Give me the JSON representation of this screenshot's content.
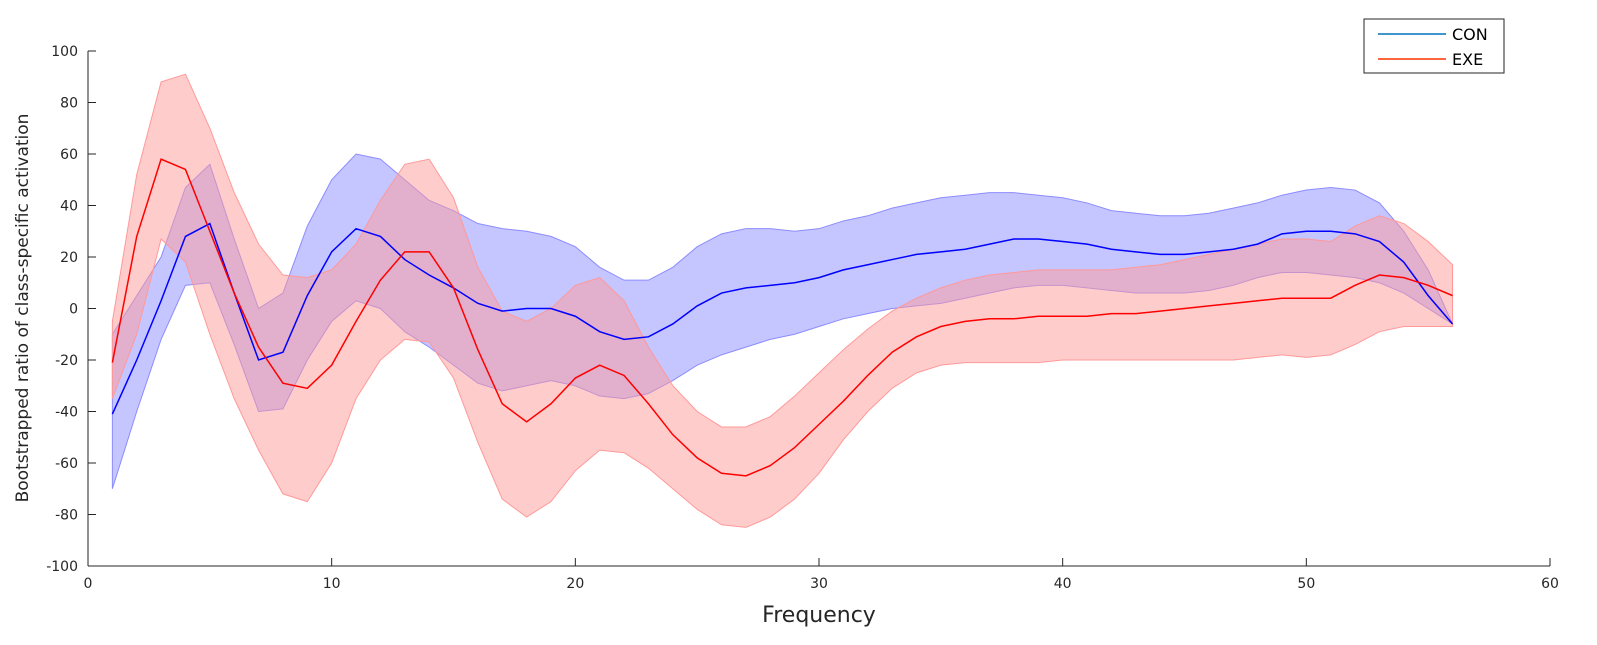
{
  "chart_data": {
    "type": "line",
    "title": "",
    "xlabel": "Frequency",
    "ylabel": "Bootstrapped ratio of class-specific activation",
    "xlim": [
      0,
      60
    ],
    "ylim": [
      -100,
      100
    ],
    "xticks": [
      "0",
      "10",
      "20",
      "30",
      "40",
      "50",
      "60"
    ],
    "yticks": [
      "-100",
      "-80",
      "-60",
      "-40",
      "-20",
      "0",
      "20",
      "40",
      "60",
      "80",
      "100"
    ],
    "grid": false,
    "legend_position": "top-right",
    "x": [
      1,
      2,
      3,
      4,
      5,
      6,
      7,
      8,
      9,
      10,
      11,
      12,
      13,
      14,
      15,
      16,
      17,
      18,
      19,
      20,
      21,
      22,
      23,
      24,
      25,
      26,
      27,
      28,
      29,
      30,
      31,
      32,
      33,
      34,
      35,
      36,
      37,
      38,
      39,
      40,
      41,
      42,
      43,
      44,
      45,
      46,
      47,
      48,
      49,
      50,
      51,
      52,
      53,
      54,
      55,
      56
    ],
    "series": [
      {
        "name": "CON",
        "color": "#0000ff",
        "band_color": "#8c8cff",
        "values": [
          -41,
          -20,
          3,
          28,
          33,
          6,
          -20,
          -17,
          5,
          22,
          31,
          28,
          19,
          13,
          8,
          2,
          -1,
          0,
          0,
          -3,
          -9,
          -12,
          -11,
          -6,
          1,
          6,
          8,
          9,
          10,
          12,
          15,
          17,
          19,
          21,
          22,
          23,
          25,
          27,
          27,
          26,
          25,
          23,
          22,
          21,
          21,
          22,
          23,
          25,
          29,
          30,
          30,
          29,
          26,
          18,
          5,
          -6
        ],
        "lower": [
          -70,
          -40,
          -12,
          9,
          10,
          -14,
          -40,
          -39,
          -20,
          -5,
          3,
          0,
          -9,
          -15,
          -22,
          -29,
          -32,
          -30,
          -28,
          -30,
          -34,
          -35,
          -33,
          -28,
          -22,
          -18,
          -15,
          -12,
          -10,
          -7,
          -4,
          -2,
          0,
          1,
          2,
          4,
          6,
          8,
          9,
          9,
          8,
          7,
          6,
          6,
          6,
          7,
          9,
          12,
          14,
          14,
          13,
          12,
          10,
          6,
          0,
          -6
        ],
        "upper": [
          -10,
          5,
          20,
          47,
          56,
          27,
          0,
          6,
          32,
          50,
          60,
          58,
          50,
          42,
          38,
          33,
          31,
          30,
          28,
          24,
          16,
          11,
          11,
          16,
          24,
          29,
          31,
          31,
          30,
          31,
          34,
          36,
          39,
          41,
          43,
          44,
          45,
          45,
          44,
          43,
          41,
          38,
          37,
          36,
          36,
          37,
          39,
          41,
          44,
          46,
          47,
          46,
          41,
          30,
          15,
          -6
        ]
      },
      {
        "name": "EXE",
        "color": "#ff0000",
        "band_color": "#ff9999",
        "values": [
          -21,
          28,
          58,
          54,
          30,
          6,
          -15,
          -29,
          -31,
          -22,
          -5,
          11,
          22,
          22,
          8,
          -16,
          -37,
          -44,
          -37,
          -27,
          -22,
          -26,
          -37,
          -49,
          -58,
          -64,
          -65,
          -61,
          -54,
          -45,
          -36,
          -26,
          -17,
          -11,
          -7,
          -5,
          -4,
          -4,
          -3,
          -3,
          -3,
          -2,
          -2,
          -1,
          0,
          1,
          2,
          3,
          4,
          4,
          4,
          9,
          13,
          12,
          9,
          5
        ],
        "lower": [
          -35,
          -10,
          27,
          18,
          -10,
          -35,
          -55,
          -72,
          -75,
          -60,
          -35,
          -20,
          -12,
          -13,
          -27,
          -52,
          -74,
          -81,
          -75,
          -63,
          -55,
          -56,
          -62,
          -70,
          -78,
          -84,
          -85,
          -81,
          -74,
          -64,
          -51,
          -40,
          -31,
          -25,
          -22,
          -21,
          -21,
          -21,
          -21,
          -20,
          -20,
          -20,
          -20,
          -20,
          -20,
          -20,
          -20,
          -19,
          -18,
          -19,
          -18,
          -14,
          -9,
          -7,
          -7,
          -7
        ],
        "upper": [
          -5,
          52,
          88,
          91,
          70,
          45,
          25,
          13,
          12,
          15,
          25,
          42,
          56,
          58,
          43,
          16,
          -1,
          -5,
          0,
          9,
          12,
          3,
          -15,
          -30,
          -40,
          -46,
          -46,
          -42,
          -34,
          -25,
          -16,
          -8,
          -1,
          4,
          8,
          11,
          13,
          14,
          15,
          15,
          15,
          15,
          16,
          17,
          19,
          21,
          23,
          25,
          27,
          27,
          26,
          32,
          36,
          33,
          26,
          17
        ]
      }
    ]
  }
}
